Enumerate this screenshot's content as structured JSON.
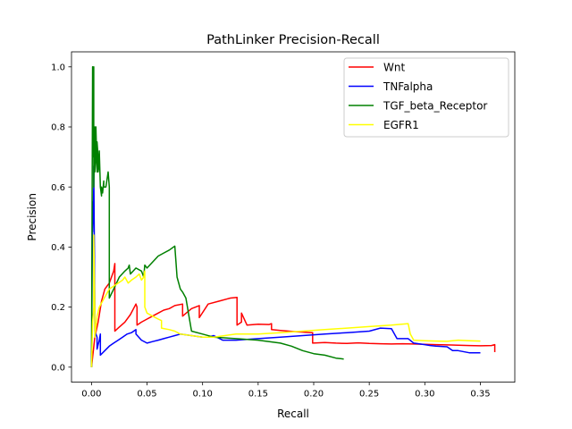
{
  "chart_data": {
    "type": "line",
    "title": "PathLinker Precision-Recall",
    "xlabel": "Recall",
    "ylabel": "Precision",
    "xlim": [
      -0.018,
      0.381
    ],
    "ylim": [
      -0.05,
      1.05
    ],
    "xticks": [
      0.0,
      0.05,
      0.1,
      0.15,
      0.2,
      0.25,
      0.3,
      0.35
    ],
    "xtick_labels": [
      "0.00",
      "0.05",
      "0.10",
      "0.15",
      "0.20",
      "0.25",
      "0.30",
      "0.35"
    ],
    "yticks": [
      0.0,
      0.2,
      0.4,
      0.6,
      0.8,
      1.0
    ],
    "ytick_labels": [
      "0.0",
      "0.2",
      "0.4",
      "0.6",
      "0.8",
      "1.0"
    ],
    "grid": false,
    "legend_position": "top-right",
    "series": [
      {
        "name": "Wnt",
        "color": "#ff0000",
        "x": [
          0.0,
          0.003,
          0.006,
          0.009,
          0.012,
          0.016,
          0.02,
          0.021,
          0.021,
          0.024,
          0.03,
          0.035,
          0.04,
          0.041,
          0.041,
          0.045,
          0.05,
          0.055,
          0.06,
          0.065,
          0.07,
          0.075,
          0.082,
          0.082,
          0.09,
          0.097,
          0.097,
          0.105,
          0.115,
          0.125,
          0.131,
          0.131,
          0.135,
          0.135,
          0.14,
          0.15,
          0.16,
          0.162,
          0.162,
          0.17,
          0.18,
          0.185,
          0.189,
          0.199,
          0.199,
          0.21,
          0.22,
          0.23,
          0.24,
          0.25,
          0.26,
          0.27,
          0.28,
          0.29,
          0.3,
          0.31,
          0.32,
          0.33,
          0.34,
          0.35,
          0.36,
          0.363,
          0.363
        ],
        "y": [
          0.0,
          0.1,
          0.15,
          0.22,
          0.26,
          0.28,
          0.32,
          0.345,
          0.12,
          0.13,
          0.15,
          0.175,
          0.21,
          0.2,
          0.14,
          0.15,
          0.16,
          0.17,
          0.18,
          0.19,
          0.195,
          0.205,
          0.21,
          0.17,
          0.195,
          0.205,
          0.165,
          0.21,
          0.22,
          0.23,
          0.232,
          0.14,
          0.15,
          0.18,
          0.14,
          0.143,
          0.142,
          0.145,
          0.125,
          0.122,
          0.119,
          0.118,
          0.117,
          0.115,
          0.08,
          0.082,
          0.08,
          0.079,
          0.081,
          0.079,
          0.078,
          0.077,
          0.078,
          0.077,
          0.076,
          0.075,
          0.074,
          0.073,
          0.072,
          0.071,
          0.072,
          0.075,
          0.05
        ]
      },
      {
        "name": "TNFalpha",
        "color": "#0000ff",
        "x": [
          0.0,
          0.001,
          0.001,
          0.002,
          0.002,
          0.003,
          0.003,
          0.005,
          0.005,
          0.006,
          0.007,
          0.008,
          0.008,
          0.012,
          0.016,
          0.02,
          0.024,
          0.028,
          0.032,
          0.036,
          0.04,
          0.04,
          0.045,
          0.05,
          0.055,
          0.06,
          0.065,
          0.07,
          0.075,
          0.08,
          0.09,
          0.1,
          0.105,
          0.11,
          0.118,
          0.13,
          0.15,
          0.17,
          0.19,
          0.21,
          0.23,
          0.25,
          0.26,
          0.27,
          0.275,
          0.285,
          0.29,
          0.3,
          0.305,
          0.31,
          0.32,
          0.325,
          0.33,
          0.34,
          0.35
        ],
        "y": [
          0.0,
          0.55,
          0.45,
          0.6,
          0.67,
          0.2,
          0.12,
          0.1,
          0.06,
          0.075,
          0.09,
          0.11,
          0.04,
          0.055,
          0.07,
          0.08,
          0.09,
          0.1,
          0.11,
          0.115,
          0.125,
          0.11,
          0.09,
          0.08,
          0.085,
          0.09,
          0.095,
          0.1,
          0.105,
          0.11,
          0.105,
          0.1,
          0.1,
          0.105,
          0.09,
          0.09,
          0.095,
          0.1,
          0.105,
          0.11,
          0.115,
          0.12,
          0.13,
          0.128,
          0.095,
          0.095,
          0.08,
          0.075,
          0.072,
          0.07,
          0.068,
          0.055,
          0.055,
          0.048,
          0.048
        ]
      },
      {
        "name": "TGF_beta_Receptor",
        "color": "#008000",
        "x": [
          0.0,
          0.001,
          0.001,
          0.002,
          0.002,
          0.003,
          0.003,
          0.004,
          0.004,
          0.005,
          0.005,
          0.006,
          0.006,
          0.007,
          0.007,
          0.008,
          0.009,
          0.009,
          0.01,
          0.011,
          0.011,
          0.013,
          0.015,
          0.016,
          0.016,
          0.02,
          0.025,
          0.03,
          0.033,
          0.034,
          0.035,
          0.04,
          0.045,
          0.047,
          0.048,
          0.05,
          0.055,
          0.06,
          0.065,
          0.07,
          0.075,
          0.076,
          0.077,
          0.08,
          0.082,
          0.085,
          0.09,
          0.1,
          0.11,
          0.13,
          0.15,
          0.17,
          0.18,
          0.19,
          0.2,
          0.21,
          0.22,
          0.227
        ],
        "y": [
          0.0,
          1.0,
          0.7,
          1.0,
          0.6,
          0.8,
          0.65,
          0.7,
          0.8,
          0.65,
          0.75,
          0.7,
          0.65,
          0.68,
          0.72,
          0.6,
          0.57,
          0.6,
          0.58,
          0.62,
          0.6,
          0.6,
          0.65,
          0.6,
          0.23,
          0.26,
          0.3,
          0.32,
          0.33,
          0.34,
          0.31,
          0.33,
          0.32,
          0.3,
          0.34,
          0.33,
          0.35,
          0.37,
          0.38,
          0.39,
          0.403,
          0.35,
          0.3,
          0.26,
          0.25,
          0.23,
          0.12,
          0.11,
          0.1,
          0.095,
          0.09,
          0.08,
          0.07,
          0.055,
          0.045,
          0.04,
          0.03,
          0.027
        ]
      },
      {
        "name": "EGFR1",
        "color": "#ffff00",
        "x": [
          0.0,
          0.001,
          0.002,
          0.002,
          0.003,
          0.003,
          0.005,
          0.007,
          0.01,
          0.013,
          0.016,
          0.02,
          0.024,
          0.028,
          0.03,
          0.033,
          0.036,
          0.04,
          0.043,
          0.045,
          0.047,
          0.048,
          0.048,
          0.05,
          0.055,
          0.06,
          0.063,
          0.063,
          0.07,
          0.075,
          0.08,
          0.09,
          0.1,
          0.11,
          0.12,
          0.13,
          0.15,
          0.17,
          0.19,
          0.21,
          0.23,
          0.25,
          0.27,
          0.285,
          0.287,
          0.29,
          0.3,
          0.31,
          0.32,
          0.33,
          0.34,
          0.35
        ],
        "y": [
          0.0,
          0.15,
          0.2,
          0.44,
          0.2,
          0.1,
          0.17,
          0.2,
          0.22,
          0.24,
          0.26,
          0.27,
          0.28,
          0.29,
          0.3,
          0.28,
          0.29,
          0.3,
          0.31,
          0.29,
          0.3,
          0.32,
          0.2,
          0.18,
          0.17,
          0.16,
          0.155,
          0.13,
          0.125,
          0.12,
          0.11,
          0.105,
          0.1,
          0.1,
          0.105,
          0.11,
          0.11,
          0.115,
          0.12,
          0.125,
          0.13,
          0.135,
          0.14,
          0.145,
          0.11,
          0.09,
          0.088,
          0.087,
          0.086,
          0.09,
          0.088,
          0.087
        ]
      }
    ]
  }
}
